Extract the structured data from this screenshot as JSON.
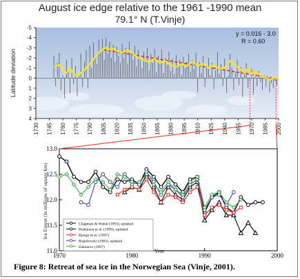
{
  "figure_caption": "Figure 8: Retreat of sea ice in the Norwegian Sea (Vinje, 2001).",
  "colors": {
    "top_background": "#c9d7ec",
    "annual_bars": "#555555",
    "smoothed_line": "#f2e233",
    "trend_line": "#e8231e",
    "marker_line": "#e8231e"
  },
  "chart_data": [
    {
      "type": "line",
      "title": "August ice edge relative to the 1961 -1990 mean",
      "subtitle": "79.1° N (T.Vinje)",
      "ylabel": "Latitude deviation",
      "ylim": [
        -5,
        4
      ],
      "y_inverted": true,
      "xlim": [
        1730,
        2000
      ],
      "x_ticks": [
        1730,
        1745,
        1760,
        1775,
        1790,
        1805,
        1820,
        1835,
        1850,
        1865,
        1880,
        1895,
        1910,
        1925,
        1940,
        1955,
        1970,
        1985,
        2000
      ],
      "x_tick_labels": [
        "1730",
        "1745",
        "1760",
        "1775",
        "1790",
        "1805",
        "1820",
        "1835",
        "1850",
        "1865",
        "1880",
        "1895",
        "1910",
        "1925",
        "1940",
        "1955",
        "1970",
        "1985",
        "2000"
      ],
      "y_ticks": [
        -5,
        -4,
        -3,
        -2,
        -1,
        0,
        1,
        2,
        3,
        4
      ],
      "y_tick_labels": [
        "-5",
        "-4",
        "-3",
        "-2",
        "-1",
        "0",
        "1",
        "2",
        "3",
        "4"
      ],
      "annotation_lines": [
        "y = 0.016 - 3.0",
        "R = 0.60"
      ],
      "trend": {
        "x": [
          1805,
          2000
        ],
        "y": [
          -2.8,
          0.1
        ]
      },
      "smoothed": {
        "x": [
          1750,
          1756,
          1760,
          1764,
          1768,
          1772,
          1776,
          1780,
          1784,
          1788,
          1792,
          1796,
          1800,
          1804,
          1808,
          1812,
          1816,
          1820,
          1826,
          1832,
          1838,
          1844,
          1850,
          1856,
          1862,
          1868,
          1874,
          1880,
          1886,
          1892,
          1898,
          1904,
          1910,
          1916,
          1922,
          1928,
          1934,
          1940,
          1946,
          1950,
          1956,
          1962,
          1966,
          1970,
          1975,
          1980,
          1985,
          1990,
          1995,
          2000
        ],
        "y": [
          -1.1,
          -1.3,
          -0.8,
          -0.5,
          -1.0,
          -0.4,
          -0.2,
          -0.5,
          -0.8,
          -1.2,
          -1.6,
          -2.1,
          -2.5,
          -2.8,
          -3.0,
          -2.8,
          -2.9,
          -2.7,
          -2.5,
          -2.8,
          -2.4,
          -2.0,
          -1.8,
          -1.6,
          -1.9,
          -1.5,
          -1.7,
          -1.3,
          -1.1,
          -1.4,
          -1.2,
          -1.6,
          -1.2,
          -1.4,
          -1.0,
          -1.3,
          -0.9,
          -1.0,
          -1.7,
          -1.4,
          -1.0,
          -0.5,
          -1.0,
          -0.4,
          -0.6,
          -0.3,
          -0.1,
          0.2,
          -0.1,
          0.1
        ]
      },
      "annual_deviation_bars": {
        "x": [
          1750,
          1752,
          1754,
          1756,
          1758,
          1760,
          1762,
          1764,
          1766,
          1768,
          1770,
          1772,
          1774,
          1776,
          1778,
          1780,
          1782,
          1784,
          1786,
          1788,
          1790,
          1792,
          1794,
          1796,
          1798,
          1800,
          1802,
          1804,
          1806,
          1808,
          1810,
          1812,
          1814,
          1816,
          1818,
          1820,
          1822,
          1824,
          1826,
          1828,
          1830,
          1832,
          1834,
          1836,
          1838,
          1840,
          1842,
          1844,
          1846,
          1848,
          1850,
          1852,
          1854,
          1856,
          1858,
          1860,
          1862,
          1864,
          1866,
          1868,
          1870,
          1872,
          1874,
          1876,
          1878,
          1880,
          1882,
          1884,
          1886,
          1888,
          1890,
          1892,
          1894,
          1896,
          1898,
          1900,
          1902,
          1904,
          1906,
          1908,
          1910,
          1912,
          1914,
          1916,
          1918,
          1920,
          1922,
          1924,
          1926,
          1928,
          1930,
          1932,
          1934,
          1936,
          1938,
          1940,
          1942,
          1944,
          1946,
          1948,
          1950,
          1952,
          1954,
          1956,
          1958,
          1960,
          1962,
          1964,
          1966,
          1968,
          1970,
          1972,
          1974,
          1976,
          1978,
          1980,
          1982,
          1984,
          1986,
          1988,
          1990,
          1992,
          1994,
          1996,
          1998
        ],
        "y": [
          -2.2,
          0.8,
          -1.5,
          -2.5,
          1.2,
          -0.3,
          2.0,
          -1.8,
          -0.6,
          1.5,
          -2.0,
          0.6,
          -1.2,
          1.8,
          -0.4,
          -2.4,
          0.9,
          -1.6,
          -2.8,
          1.0,
          -3.2,
          -1.0,
          -3.5,
          -2.2,
          -1.4,
          -3.8,
          -2.6,
          -3.9,
          -1.8,
          -4.0,
          -2.4,
          -3.6,
          -2.0,
          -3.3,
          -1.6,
          -3.1,
          -2.2,
          -1.5,
          -3.4,
          -2.0,
          -3.0,
          -1.4,
          -3.6,
          -2.5,
          -1.8,
          -3.2,
          -1.2,
          -2.8,
          -2.0,
          -1.0,
          -2.6,
          -1.6,
          -3.0,
          -0.8,
          -2.4,
          -1.5,
          -2.9,
          -0.6,
          -2.2,
          -1.4,
          -2.8,
          -0.5,
          -2.0,
          -1.3,
          -2.6,
          -0.7,
          -1.9,
          -0.4,
          -2.3,
          -1.1,
          -1.8,
          -0.3,
          -2.1,
          -1.0,
          -1.6,
          -2.4,
          -0.6,
          -1.8,
          -0.9,
          -2.5,
          1.4,
          -1.6,
          -0.5,
          -2.2,
          0.9,
          -1.2,
          -2.0,
          -0.3,
          -1.5,
          1.1,
          -0.8,
          -2.6,
          -0.4,
          -1.4,
          0.8,
          -1.9,
          1.5,
          -0.2,
          -2.4,
          -1.0,
          1.2,
          -0.6,
          -1.8,
          0.7,
          -1.1,
          1.9,
          -0.4,
          -1.5,
          1.0,
          0.3,
          -0.9,
          1.6,
          -0.2,
          0.8,
          -0.7,
          0.4,
          1.2,
          -0.3,
          0.9,
          0.2,
          1.4,
          0.5,
          1.0,
          0.3,
          0.7
        ]
      },
      "marker_lines_x": [
        1968,
        1997
      ]
    },
    {
      "type": "line",
      "title": "",
      "ylabel": "Ice Extent (in millions of square km)",
      "xlabel": "Year",
      "ylim": [
        11.0,
        13.0
      ],
      "xlim": [
        1970,
        2000
      ],
      "x_ticks": [
        1970,
        1980,
        1990,
        2000
      ],
      "x_tick_labels": [
        "1970",
        "1980",
        "1990",
        "2000"
      ],
      "y_ticks": [
        11.0,
        11.5,
        12.0,
        12.5,
        13.0
      ],
      "y_tick_labels": [
        "11.0",
        "11.5",
        "12.0",
        "12.5",
        "13.0"
      ],
      "series": [
        {
          "name": "Chapman & Walsh (1993), updated",
          "color": "#000000",
          "marker": "circle",
          "x": [
            1970,
            1971,
            1972,
            1973,
            1974,
            1975,
            1976,
            1977,
            1978,
            1979,
            1980,
            1981,
            1982,
            1983,
            1984,
            1985,
            1986,
            1987,
            1988,
            1989,
            1990,
            1991,
            1992,
            1993,
            1994,
            1995,
            1996,
            1997,
            1998
          ],
          "y": [
            12.85,
            12.75,
            12.45,
            12.35,
            12.35,
            12.55,
            12.25,
            12.15,
            12.4,
            12.35,
            12.4,
            12.3,
            12.6,
            12.45,
            12.25,
            12.45,
            12.3,
            12.15,
            12.4,
            12.45,
            11.75,
            12.05,
            12.15,
            11.85,
            11.75,
            12.05,
            11.9,
            11.95,
            11.95
          ]
        },
        {
          "name": "Parkinson et al. (1999), updated",
          "color": "#000000",
          "marker": "triangle",
          "x": [
            1979,
            1980,
            1981,
            1982,
            1983,
            1984,
            1985,
            1986,
            1987,
            1988,
            1989,
            1990,
            1991,
            1992,
            1993,
            1994,
            1995,
            1996,
            1997
          ],
          "y": [
            12.15,
            12.25,
            12.2,
            12.5,
            12.25,
            11.95,
            12.25,
            12.1,
            12.0,
            12.25,
            12.35,
            11.6,
            11.8,
            11.95,
            11.7,
            11.7,
            11.35,
            11.55,
            11.35
          ]
        },
        {
          "name": "Bjorgo et al. (1997)",
          "color": "#e2231a",
          "marker": "square",
          "x": [
            1978,
            1979,
            1980,
            1981,
            1982,
            1983,
            1984,
            1985,
            1986,
            1987,
            1988,
            1989,
            1990,
            1991,
            1992,
            1993,
            1994,
            1995
          ],
          "y": [
            12.1,
            12.2,
            12.25,
            12.2,
            12.4,
            12.15,
            11.95,
            12.1,
            12.05,
            11.95,
            12.15,
            12.25,
            11.7,
            11.85,
            11.9,
            11.8,
            11.75,
            11.85
          ]
        },
        {
          "name": "Ropelewski (1983), updated",
          "color": "#3b3ba8",
          "marker": "circle",
          "x": [
            1973,
            1974,
            1975,
            1976,
            1977,
            1978,
            1979,
            1980,
            1981,
            1982,
            1983,
            1984,
            1985,
            1986,
            1987,
            1988,
            1989,
            1990,
            1991,
            1992,
            1993,
            1994
          ],
          "y": [
            11.95,
            11.9,
            12.35,
            12.5,
            12.35,
            12.25,
            12.5,
            12.35,
            12.3,
            12.55,
            12.35,
            12.1,
            12.3,
            12.2,
            12.05,
            12.3,
            12.4,
            11.8,
            12.05,
            12.1,
            11.9,
            12.15
          ]
        },
        {
          "name": "Zakharov (1997)",
          "color": "#3aa84a",
          "marker": "diamond",
          "x": [
            1970,
            1971,
            1972,
            1973,
            1974,
            1975,
            1976,
            1977,
            1978,
            1979,
            1980,
            1981,
            1982,
            1983,
            1984,
            1985,
            1986,
            1987,
            1988,
            1989,
            1990,
            1991,
            1992,
            1993,
            1994,
            1995
          ],
          "y": [
            12.45,
            12.5,
            12.3,
            12.1,
            12.25,
            12.4,
            12.35,
            12.2,
            12.5,
            12.45,
            12.3,
            12.35,
            12.5,
            12.3,
            12.15,
            12.35,
            12.2,
            12.1,
            12.35,
            12.45,
            11.85,
            12.1,
            12.15,
            11.95,
            11.85,
            12.0
          ]
        }
      ]
    }
  ]
}
